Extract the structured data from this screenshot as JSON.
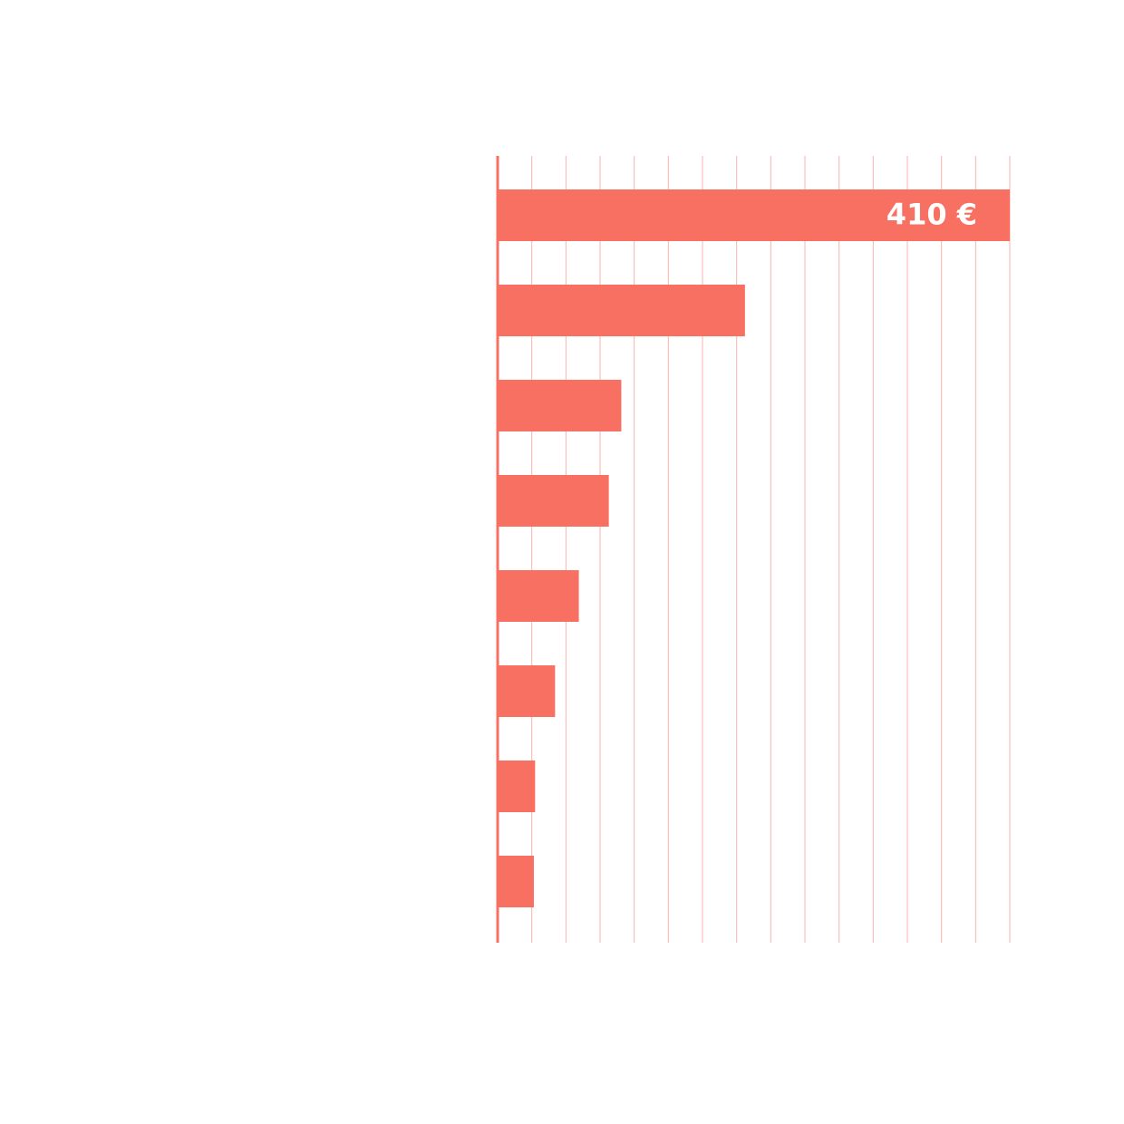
{
  "chart_data": {
    "type": "bar",
    "orientation": "horizontal",
    "values": [
      410,
      198,
      99,
      89,
      65,
      46,
      30,
      29
    ],
    "value_labels": [
      "410 €",
      null,
      null,
      null,
      null,
      null,
      null,
      null
    ],
    "color": "#f77062",
    "xlim": [
      0,
      410
    ]
  }
}
